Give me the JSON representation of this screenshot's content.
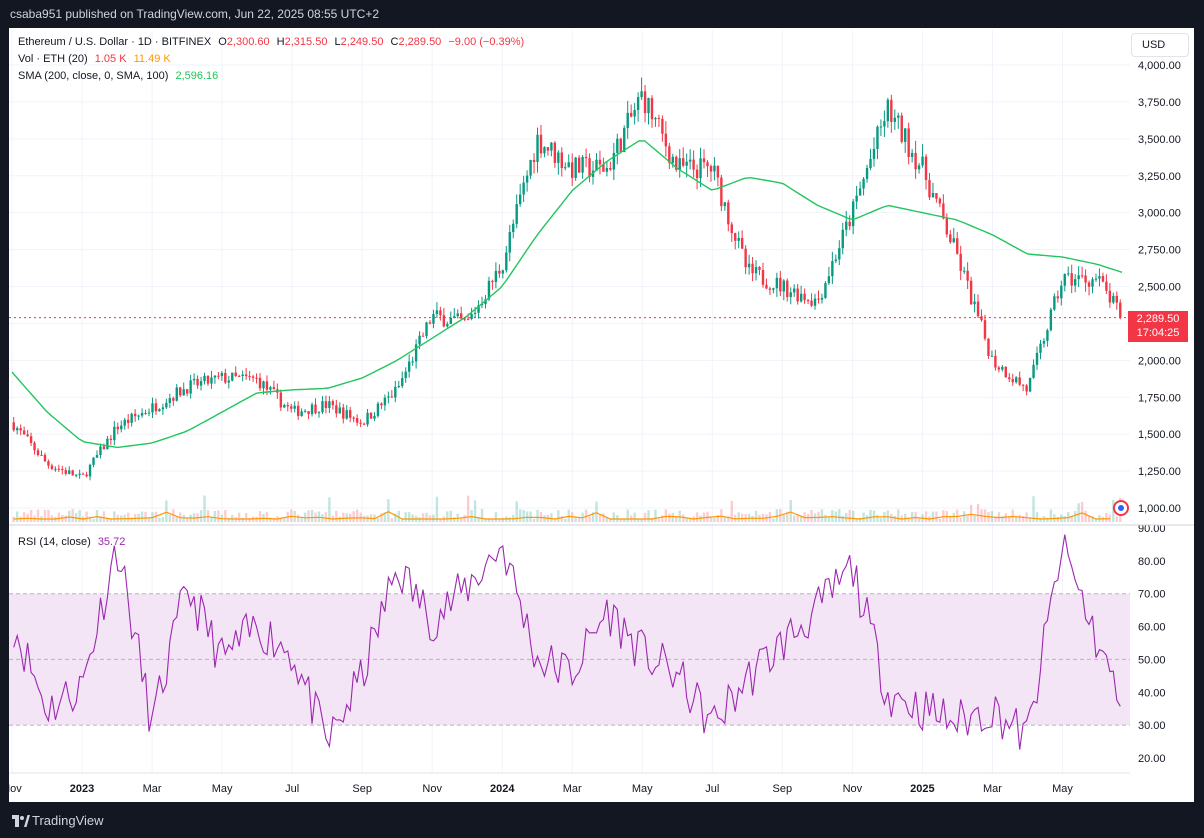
{
  "header": {
    "published": "csaba951 published on TradingView.com, Jun 22, 2025 08:55 UTC+2"
  },
  "legend": {
    "symbol": "Ethereum / U.S. Dollar · 1D · BITFINEX",
    "open_label": "O",
    "open": "2,300.60",
    "high_label": "H",
    "high": "2,315.50",
    "low_label": "L",
    "low": "2,249.50",
    "close_label": "C",
    "close": "2,289.50",
    "change": "−9.00 (−0.39%)",
    "vol_label": "Vol · ETH (20)",
    "vol_value": "1.05 K",
    "vol_ma": "11.49 K",
    "sma_label": "SMA (200, close, 0, SMA, 100)",
    "sma_value": "2,596.16",
    "rsi_label": "RSI (14, close)",
    "rsi_value": "35.72"
  },
  "currency_button": "USD",
  "price_tag": {
    "price": "2,289.50",
    "countdown": "17:04:25"
  },
  "footer": {
    "brand": "TradingView"
  },
  "colors": {
    "up": "#089981",
    "down": "#f23645",
    "sma": "#22c55e",
    "rsi": "#9c27b0",
    "rsi_band": "#f3e5f5",
    "vol_ma": "#ff9800"
  },
  "chart_data": [
    {
      "type": "candlestick",
      "ylim": [
        900,
        4100
      ],
      "y_ticks": [
        "4,000.00",
        "3,750.00",
        "3,500.00",
        "3,250.00",
        "3,000.00",
        "2,750.00",
        "2,500.00",
        "2,250.00",
        "2,000.00",
        "1,750.00",
        "1,500.00",
        "1,250.00",
        "1,000.00"
      ],
      "x_ticks": [
        "Nov",
        "2023",
        "Mar",
        "May",
        "Jul",
        "Sep",
        "Nov",
        "2024",
        "Mar",
        "May",
        "Jul",
        "Sep",
        "Nov",
        "2025",
        "Mar",
        "May"
      ],
      "x_tick_months": [
        0,
        2,
        4,
        6,
        8,
        10,
        12,
        14,
        16,
        18,
        20,
        22,
        24,
        26,
        28,
        30
      ],
      "x_start_month": 0.0,
      "x_end_month": 31.7,
      "months": [
        0,
        1,
        2,
        3,
        4,
        5,
        6,
        7,
        8,
        9,
        10,
        11,
        12,
        13,
        14,
        15,
        16,
        17,
        18,
        19,
        20,
        21,
        22,
        23,
        24,
        25,
        26,
        27,
        28,
        29,
        30,
        31,
        31.7
      ],
      "close": [
        1580,
        1300,
        1200,
        1550,
        1680,
        1820,
        1880,
        1870,
        1650,
        1700,
        1580,
        1800,
        2300,
        2250,
        2650,
        3500,
        3300,
        3300,
        3800,
        3300,
        3300,
        2600,
        2500,
        2400,
        3000,
        3700,
        3300,
        2700,
        2000,
        1800,
        2550,
        2550,
        2289.5
      ],
      "sma": [
        1920,
        1650,
        1450,
        1410,
        1440,
        1520,
        1650,
        1780,
        1800,
        1810,
        1880,
        2000,
        2150,
        2300,
        2500,
        2850,
        3150,
        3350,
        3500,
        3300,
        3150,
        3240,
        3200,
        3050,
        2950,
        3050,
        3000,
        2950,
        2850,
        2720,
        2700,
        2650,
        2596.16
      ],
      "last_close": 2289.5
    },
    {
      "type": "line",
      "series": [
        {
          "name": "RSI (14, close)"
        }
      ],
      "ylim": [
        18,
        92
      ],
      "y_ticks": [
        "90.00",
        "80.00",
        "70.00",
        "60.00",
        "50.00",
        "40.00",
        "30.00",
        "20.00"
      ],
      "bands": [
        70,
        50,
        30
      ],
      "months": [
        0,
        1,
        2,
        3,
        4,
        5,
        6,
        7,
        8,
        9,
        10,
        11,
        12,
        13,
        14,
        15,
        16,
        17,
        18,
        19,
        20,
        21,
        22,
        23,
        24,
        25,
        26,
        27,
        28,
        29,
        30,
        31,
        31.7
      ],
      "values": [
        62,
        35,
        42,
        85,
        30,
        72,
        50,
        60,
        52,
        24,
        45,
        78,
        62,
        72,
        85,
        50,
        46,
        65,
        52,
        45,
        30,
        44,
        55,
        65,
        78,
        40,
        35,
        31,
        35,
        26,
        85,
        55,
        35.72
      ]
    }
  ]
}
